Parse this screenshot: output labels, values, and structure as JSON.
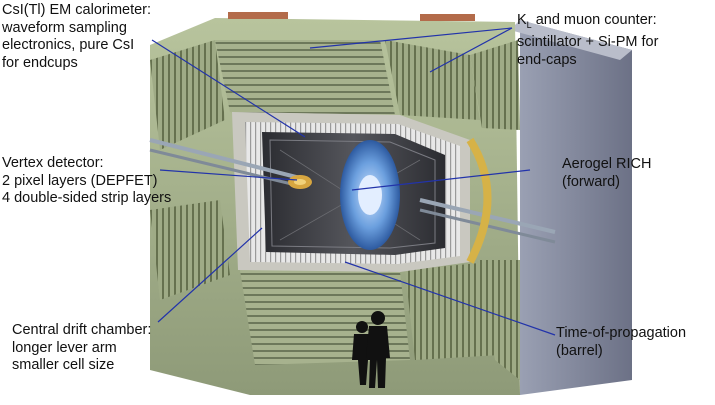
{
  "labels": {
    "csi": {
      "line1": "CsI(Tl) EM calorimeter:",
      "line2": "waveform sampling",
      "line3": "electronics, pure CsI",
      "line4": "for endcups"
    },
    "vertex": {
      "line1": "Vertex detector:",
      "line2": "2 pixel layers (DEPFET)",
      "line3": "4 double-sided strip layers"
    },
    "cdc": {
      "line1": "Central drift chamber:",
      "line2": "longer lever arm",
      "line3": "smaller cell size"
    },
    "klm": {
      "k": "K",
      "sub": "L",
      "rest": " and muon counter:",
      "line2": "scintillator + Si-PM for",
      "line3": "end-caps"
    },
    "arich": {
      "line1": "Aerogel RICH",
      "line2": "(forward)"
    },
    "top": {
      "line1": "Time-of-propagation",
      "line2": "(barrel)"
    }
  },
  "colors": {
    "pointer": "#2233aa",
    "outer_shell": "#8a8fa3",
    "iron_yoke": "#a9b58f",
    "iron_dark": "#6f7a5e",
    "solenoid": "#c8c8c0",
    "barrel_inner": "#3a3b40",
    "endcap_ring": "#d4b24a",
    "rich_blue": "#5a8fd0"
  }
}
